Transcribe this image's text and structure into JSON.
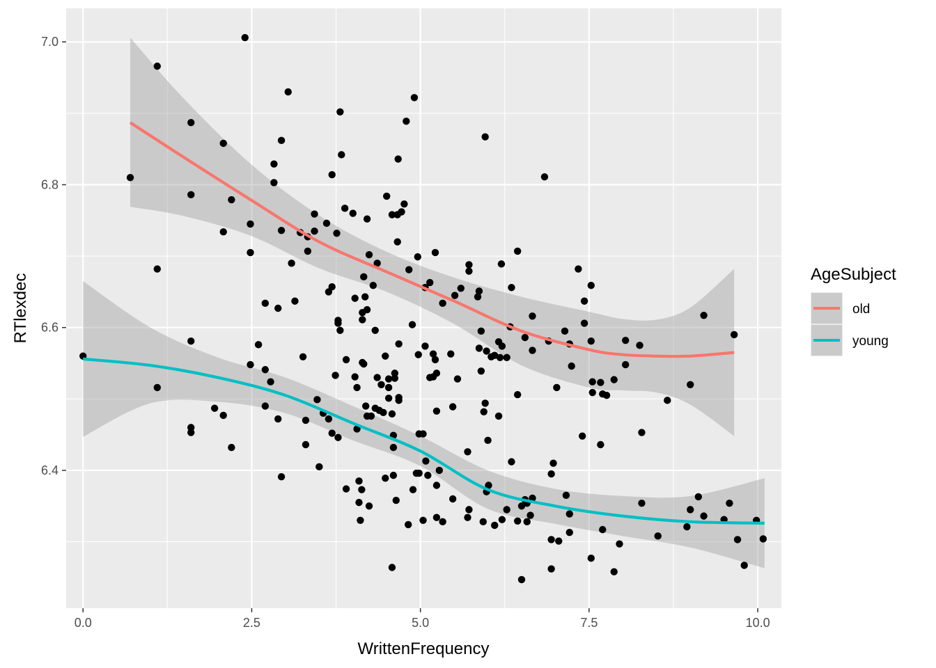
{
  "chart_data": {
    "type": "scatter",
    "xlabel": "WrittenFrequency",
    "ylabel": "RTlexdec",
    "xlim": [
      -0.25,
      10.35
    ],
    "ylim": [
      6.207,
      7.047
    ],
    "x_ticks": [
      0.0,
      2.5,
      5.0,
      7.5,
      10.0
    ],
    "x_tick_labels": [
      "0.0",
      "2.5",
      "5.0",
      "7.5",
      "10.0"
    ],
    "y_ticks": [
      6.4,
      6.6,
      6.8,
      7.0
    ],
    "y_tick_labels": [
      "6.4",
      "6.6",
      "6.8",
      "7.0"
    ],
    "grid": true,
    "legend": {
      "title": "AgeSubject",
      "position": "right",
      "entries": [
        {
          "label": "old",
          "color": "#F8766D"
        },
        {
          "label": "young",
          "color": "#00BFC4"
        }
      ]
    },
    "colors": {
      "panel": "#EBEBEB",
      "grid": "#FFFFFF",
      "ribbon": "#999999",
      "point": "#000000"
    },
    "points": [
      [
        0.0,
        6.56
      ],
      [
        0.7,
        6.81
      ],
      [
        1.1,
        6.966
      ],
      [
        1.1,
        6.682
      ],
      [
        1.1,
        6.516
      ],
      [
        1.6,
        6.887
      ],
      [
        1.6,
        6.786
      ],
      [
        1.6,
        6.581
      ],
      [
        1.6,
        6.46
      ],
      [
        1.6,
        6.453
      ],
      [
        1.95,
        6.487
      ],
      [
        2.08,
        6.858
      ],
      [
        2.08,
        6.734
      ],
      [
        2.08,
        6.477
      ],
      [
        2.2,
        6.779
      ],
      [
        2.2,
        6.432
      ],
      [
        2.4,
        7.006
      ],
      [
        2.48,
        6.745
      ],
      [
        2.48,
        6.705
      ],
      [
        2.48,
        6.548
      ],
      [
        2.6,
        6.576
      ],
      [
        2.7,
        6.634
      ],
      [
        2.7,
        6.541
      ],
      [
        2.7,
        6.49
      ],
      [
        2.78,
        6.524
      ],
      [
        2.83,
        6.829
      ],
      [
        2.83,
        6.803
      ],
      [
        2.89,
        6.627
      ],
      [
        2.89,
        6.472
      ],
      [
        2.94,
        6.862
      ],
      [
        2.94,
        6.736
      ],
      [
        2.94,
        6.391
      ],
      [
        3.04,
        6.93
      ],
      [
        3.09,
        6.69
      ],
      [
        3.14,
        6.637
      ],
      [
        3.22,
        6.733
      ],
      [
        3.26,
        6.559
      ],
      [
        3.3,
        6.47
      ],
      [
        3.3,
        6.436
      ],
      [
        3.33,
        6.707
      ],
      [
        3.33,
        6.727
      ],
      [
        3.43,
        6.759
      ],
      [
        3.43,
        6.735
      ],
      [
        3.47,
        6.499
      ],
      [
        3.5,
        6.405
      ],
      [
        3.56,
        6.48
      ],
      [
        3.61,
        6.746
      ],
      [
        3.64,
        6.65
      ],
      [
        3.64,
        6.472
      ],
      [
        3.69,
        6.814
      ],
      [
        3.69,
        6.657
      ],
      [
        3.69,
        6.452
      ],
      [
        3.74,
        6.533
      ],
      [
        3.76,
        6.732
      ],
      [
        3.78,
        6.61
      ],
      [
        3.78,
        6.606
      ],
      [
        3.78,
        6.446
      ],
      [
        3.81,
        6.902
      ],
      [
        3.81,
        6.596
      ],
      [
        3.83,
        6.842
      ],
      [
        3.88,
        6.767
      ],
      [
        3.9,
        6.555
      ],
      [
        3.9,
        6.374
      ],
      [
        4.0,
        6.76
      ],
      [
        4.03,
        6.641
      ],
      [
        4.03,
        6.531
      ],
      [
        4.06,
        6.516
      ],
      [
        4.06,
        6.458
      ],
      [
        4.09,
        6.385
      ],
      [
        4.09,
        6.355
      ],
      [
        4.11,
        6.33
      ],
      [
        4.13,
        6.373
      ],
      [
        4.14,
        6.621
      ],
      [
        4.14,
        6.611
      ],
      [
        4.14,
        6.551
      ],
      [
        4.16,
        6.549
      ],
      [
        4.16,
        6.671
      ],
      [
        4.18,
        6.643
      ],
      [
        4.19,
        6.49
      ],
      [
        4.21,
        6.476
      ],
      [
        4.21,
        6.752
      ],
      [
        4.21,
        6.625
      ],
      [
        4.24,
        6.702
      ],
      [
        4.24,
        6.35
      ],
      [
        4.27,
        6.476
      ],
      [
        4.3,
        6.659
      ],
      [
        4.33,
        6.596
      ],
      [
        4.33,
        6.487
      ],
      [
        4.36,
        6.69
      ],
      [
        4.36,
        6.53
      ],
      [
        4.39,
        6.484
      ],
      [
        4.42,
        6.52
      ],
      [
        4.45,
        6.481
      ],
      [
        4.48,
        6.56
      ],
      [
        4.48,
        6.389
      ],
      [
        4.5,
        6.784
      ],
      [
        4.53,
        6.516
      ],
      [
        4.53,
        6.501
      ],
      [
        4.53,
        6.528
      ],
      [
        4.58,
        6.758
      ],
      [
        4.58,
        6.479
      ],
      [
        4.58,
        6.264
      ],
      [
        4.6,
        6.449
      ],
      [
        4.6,
        6.432
      ],
      [
        4.6,
        6.393
      ],
      [
        4.62,
        6.536
      ],
      [
        4.62,
        6.529
      ],
      [
        4.64,
        6.358
      ],
      [
        4.66,
        6.758
      ],
      [
        4.66,
        6.72
      ],
      [
        4.67,
        6.836
      ],
      [
        4.68,
        6.577
      ],
      [
        4.68,
        6.498
      ],
      [
        4.68,
        6.502
      ],
      [
        4.72,
        6.762
      ],
      [
        4.76,
        6.773
      ],
      [
        4.79,
        6.889
      ],
      [
        4.82,
        6.324
      ],
      [
        4.83,
        6.681
      ],
      [
        4.88,
        6.604
      ],
      [
        4.89,
        6.373
      ],
      [
        4.91,
        6.922
      ],
      [
        4.94,
        6.396
      ],
      [
        4.96,
        6.699
      ],
      [
        4.97,
        6.562
      ],
      [
        4.98,
        6.451
      ],
      [
        4.98,
        6.396
      ],
      [
        5.04,
        6.33
      ],
      [
        5.04,
        6.451
      ],
      [
        5.07,
        6.574
      ],
      [
        5.07,
        6.656
      ],
      [
        5.08,
        6.413
      ],
      [
        5.11,
        6.393
      ],
      [
        5.14,
        6.53
      ],
      [
        5.14,
        6.663
      ],
      [
        5.19,
        6.563
      ],
      [
        5.19,
        6.531
      ],
      [
        5.22,
        6.705
      ],
      [
        5.22,
        6.555
      ],
      [
        5.24,
        6.536
      ],
      [
        5.24,
        6.483
      ],
      [
        5.24,
        6.379
      ],
      [
        5.24,
        6.334
      ],
      [
        5.28,
        6.4
      ],
      [
        5.33,
        6.634
      ],
      [
        5.33,
        6.328
      ],
      [
        5.45,
        6.563
      ],
      [
        5.48,
        6.489
      ],
      [
        5.48,
        6.36
      ],
      [
        5.51,
        6.645
      ],
      [
        5.55,
        6.528
      ],
      [
        5.6,
        6.655
      ],
      [
        5.7,
        6.426
      ],
      [
        5.7,
        6.334
      ],
      [
        5.72,
        6.345
      ],
      [
        5.72,
        6.679
      ],
      [
        5.72,
        6.688
      ],
      [
        5.85,
        6.643
      ],
      [
        5.87,
        6.571
      ],
      [
        5.87,
        6.651
      ],
      [
        5.9,
        6.539
      ],
      [
        5.9,
        6.595
      ],
      [
        5.93,
        6.328
      ],
      [
        5.94,
        6.482
      ],
      [
        5.96,
        6.867
      ],
      [
        5.96,
        6.494
      ],
      [
        5.98,
        6.567
      ],
      [
        5.98,
        6.37
      ],
      [
        6.0,
        6.442
      ],
      [
        6.01,
        6.379
      ],
      [
        6.05,
        6.559
      ],
      [
        6.1,
        6.323
      ],
      [
        6.1,
        6.561
      ],
      [
        6.16,
        6.58
      ],
      [
        6.16,
        6.476
      ],
      [
        6.18,
        6.558
      ],
      [
        6.2,
        6.689
      ],
      [
        6.21,
        6.574
      ],
      [
        6.21,
        6.331
      ],
      [
        6.28,
        6.558
      ],
      [
        6.28,
        6.345
      ],
      [
        6.33,
        6.601
      ],
      [
        6.35,
        6.656
      ],
      [
        6.35,
        6.412
      ],
      [
        6.44,
        6.707
      ],
      [
        6.44,
        6.506
      ],
      [
        6.44,
        6.329
      ],
      [
        6.5,
        6.247
      ],
      [
        6.5,
        6.35
      ],
      [
        6.55,
        6.359
      ],
      [
        6.55,
        6.586
      ],
      [
        6.58,
        6.354
      ],
      [
        6.58,
        6.328
      ],
      [
        6.63,
        6.337
      ],
      [
        6.66,
        6.616
      ],
      [
        6.66,
        6.568
      ],
      [
        6.66,
        6.361
      ],
      [
        6.84,
        6.811
      ],
      [
        6.9,
        6.581
      ],
      [
        6.94,
        6.395
      ],
      [
        6.94,
        6.303
      ],
      [
        6.94,
        6.262
      ],
      [
        6.97,
        6.41
      ],
      [
        7.02,
        6.516
      ],
      [
        7.05,
        6.301
      ],
      [
        7.14,
        6.595
      ],
      [
        7.16,
        6.365
      ],
      [
        7.21,
        6.577
      ],
      [
        7.21,
        6.339
      ],
      [
        7.21,
        6.313
      ],
      [
        7.24,
        6.546
      ],
      [
        7.34,
        6.682
      ],
      [
        7.4,
        6.448
      ],
      [
        7.43,
        6.606
      ],
      [
        7.43,
        6.637
      ],
      [
        7.53,
        6.581
      ],
      [
        7.53,
        6.659
      ],
      [
        7.53,
        6.277
      ],
      [
        7.55,
        6.524
      ],
      [
        7.55,
        6.509
      ],
      [
        7.67,
        6.523
      ],
      [
        7.67,
        6.436
      ],
      [
        7.7,
        6.507
      ],
      [
        7.7,
        6.317
      ],
      [
        7.76,
        6.505
      ],
      [
        7.87,
        6.527
      ],
      [
        7.87,
        6.258
      ],
      [
        7.95,
        6.297
      ],
      [
        8.04,
        6.582
      ],
      [
        8.04,
        6.548
      ],
      [
        8.25,
        6.575
      ],
      [
        8.28,
        6.453
      ],
      [
        8.28,
        6.354
      ],
      [
        8.52,
        6.308
      ],
      [
        8.66,
        6.498
      ],
      [
        8.95,
        6.321
      ],
      [
        9.0,
        6.52
      ],
      [
        9.0,
        6.345
      ],
      [
        9.12,
        6.363
      ],
      [
        9.2,
        6.617
      ],
      [
        9.2,
        6.336
      ],
      [
        9.5,
        6.331
      ],
      [
        9.58,
        6.354
      ],
      [
        9.65,
        6.59
      ],
      [
        9.7,
        6.303
      ],
      [
        9.8,
        6.267
      ],
      [
        9.98,
        6.33
      ],
      [
        10.08,
        6.304
      ]
    ],
    "series": [
      {
        "name": "old",
        "color": "#F8766D",
        "x": [
          0.7,
          1.5,
          2.5,
          3.5,
          4.5,
          5.5,
          6.5,
          7.5,
          8.0,
          8.5,
          9.0,
          9.65
        ],
        "y": [
          6.887,
          6.838,
          6.778,
          6.72,
          6.678,
          6.637,
          6.595,
          6.569,
          6.562,
          6.56,
          6.56,
          6.565
        ],
        "upper": [
          7.006,
          6.92,
          6.828,
          6.757,
          6.706,
          6.67,
          6.643,
          6.622,
          6.612,
          6.611,
          6.628,
          6.682
        ],
        "lower": [
          6.769,
          6.756,
          6.728,
          6.683,
          6.65,
          6.605,
          6.547,
          6.516,
          6.512,
          6.509,
          6.492,
          6.448
        ]
      },
      {
        "name": "young",
        "color": "#00BFC4",
        "x": [
          0.0,
          1.0,
          2.0,
          3.0,
          4.0,
          5.0,
          6.0,
          7.0,
          8.0,
          9.0,
          10.1
        ],
        "y": [
          6.556,
          6.547,
          6.53,
          6.505,
          6.466,
          6.427,
          6.373,
          6.35,
          6.336,
          6.328,
          6.326
        ],
        "upper": [
          6.665,
          6.6,
          6.558,
          6.53,
          6.49,
          6.448,
          6.4,
          6.374,
          6.364,
          6.364,
          6.389
        ],
        "lower": [
          6.447,
          6.494,
          6.496,
          6.48,
          6.442,
          6.406,
          6.346,
          6.325,
          6.308,
          6.292,
          6.263
        ]
      }
    ]
  }
}
